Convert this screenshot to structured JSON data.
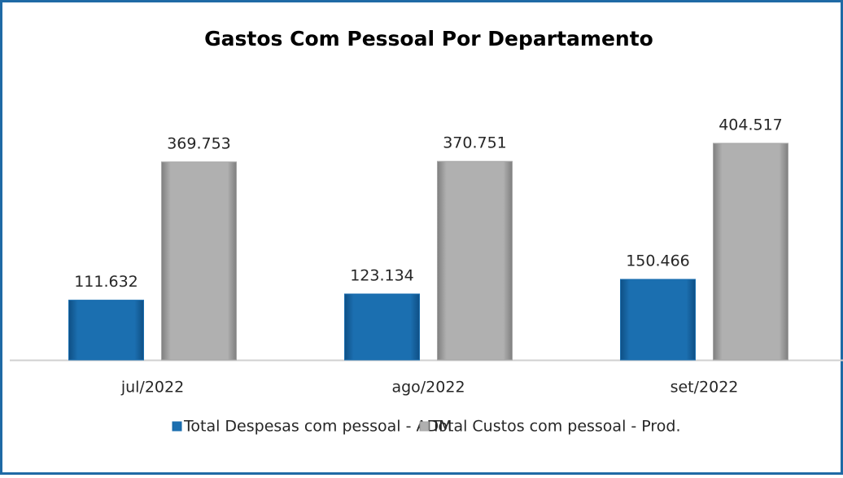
{
  "chart_data": {
    "type": "bar",
    "title": "Gastos Com Pessoal Por Departamento",
    "categories": [
      "jul/2022",
      "ago/2022",
      "set/2022"
    ],
    "series": [
      {
        "name": "Total Despesas com pessoal - ADM",
        "color": "#1b6fb0",
        "values": [
          111632,
          123134,
          150466
        ],
        "value_labels": [
          "111.632",
          "123.134",
          "150.466"
        ]
      },
      {
        "name": "Total Custos com pessoal - Prod.",
        "color": "#a6a6a6",
        "values": [
          369753,
          370751,
          404517
        ],
        "value_labels": [
          "369.753",
          "370.751",
          "404.517"
        ]
      }
    ],
    "grid": false,
    "legend": "bottom"
  }
}
